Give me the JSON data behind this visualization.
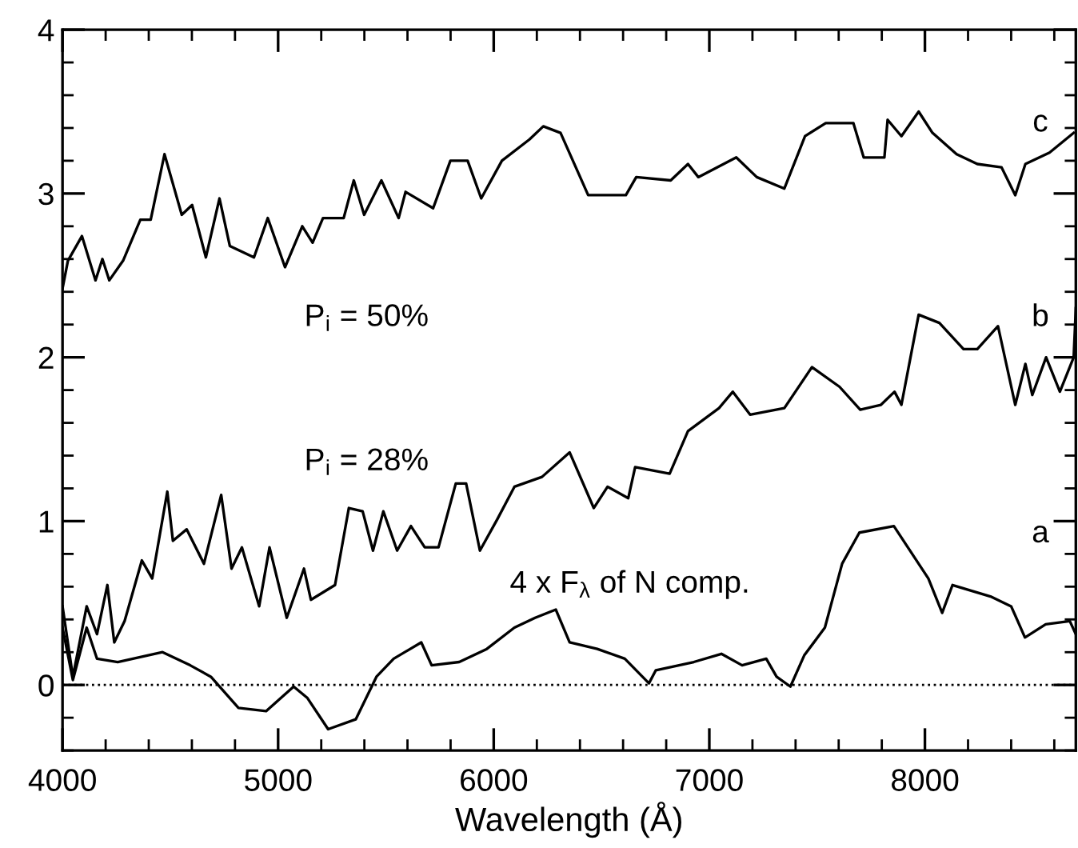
{
  "chart_data": {
    "type": "line",
    "xlabel": "Wavelength (Å)",
    "xlim": [
      4000,
      8700
    ],
    "ylim": [
      -0.4,
      4
    ],
    "xticks": [
      4000,
      5000,
      6000,
      7000,
      8000
    ],
    "yticks": [
      0,
      1,
      2,
      3,
      4
    ],
    "grid": false,
    "legend": false,
    "marker": "none",
    "line_style": "solid",
    "series": [
      {
        "color": "#000000",
        "x": [
          4000,
          4025,
          4090,
          4153,
          4185,
          4217,
          4281,
          4361,
          4409,
          4473,
          4553,
          4601,
          4665,
          4728,
          4776,
          4888,
          4952,
          5032,
          5112,
          5160,
          5208,
          5304,
          5351,
          5399,
          5479,
          5559,
          5591,
          5719,
          5799,
          5879,
          5942,
          6038,
          6166,
          6230,
          6310,
          6438,
          6613,
          6661,
          6821,
          6901,
          6949,
          7125,
          7220,
          7348,
          7444,
          7540,
          7668,
          7716,
          7812,
          7827,
          7891,
          7971,
          8035,
          8147,
          8243,
          8355,
          8419,
          8466,
          8578,
          8690
        ],
        "values": [
          2.42,
          2.59,
          2.74,
          2.47,
          2.6,
          2.47,
          2.59,
          2.84,
          2.84,
          3.24,
          2.87,
          2.93,
          2.61,
          2.97,
          2.68,
          2.61,
          2.85,
          2.55,
          2.8,
          2.7,
          2.85,
          2.85,
          3.08,
          2.87,
          3.08,
          2.85,
          3.01,
          2.91,
          3.2,
          3.2,
          2.97,
          3.2,
          3.33,
          3.41,
          3.37,
          2.99,
          2.99,
          3.1,
          3.08,
          3.18,
          3.1,
          3.22,
          3.1,
          3.03,
          3.35,
          3.43,
          3.43,
          3.22,
          3.22,
          3.45,
          3.35,
          3.5,
          3.37,
          3.24,
          3.18,
          3.16,
          2.99,
          3.18,
          3.25,
          3.37
        ]
      },
      {
        "color": "#000000",
        "x": [
          4000,
          4048,
          4112,
          4160,
          4208,
          4240,
          4288,
          4368,
          4416,
          4486,
          4512,
          4576,
          4656,
          4736,
          4784,
          4832,
          4912,
          4960,
          5040,
          5120,
          5152,
          5264,
          5328,
          5392,
          5440,
          5488,
          5552,
          5616,
          5680,
          5744,
          5824,
          5872,
          5936,
          6016,
          6096,
          6224,
          6352,
          6464,
          6528,
          6624,
          6656,
          6816,
          6901,
          7045,
          7109,
          7189,
          7348,
          7476,
          7604,
          7700,
          7796,
          7859,
          7891,
          7971,
          8067,
          8179,
          8243,
          8339,
          8419,
          8466,
          8498,
          8562,
          8626,
          8690,
          8700
        ],
        "values": [
          0.48,
          0.05,
          0.48,
          0.31,
          0.61,
          0.26,
          0.39,
          0.76,
          0.65,
          1.18,
          0.88,
          0.95,
          0.74,
          1.16,
          0.71,
          0.84,
          0.48,
          0.84,
          0.41,
          0.71,
          0.52,
          0.61,
          1.08,
          1.06,
          0.82,
          1.06,
          0.82,
          0.97,
          0.84,
          0.84,
          1.23,
          1.23,
          0.82,
          1.01,
          1.21,
          1.27,
          1.42,
          1.08,
          1.21,
          1.14,
          1.33,
          1.29,
          1.55,
          1.69,
          1.79,
          1.65,
          1.69,
          1.94,
          1.82,
          1.68,
          1.71,
          1.79,
          1.71,
          2.26,
          2.21,
          2.05,
          2.05,
          2.19,
          1.71,
          1.96,
          1.77,
          2.0,
          1.79,
          2.0,
          2.3
        ]
      },
      {
        "color": "#000000",
        "x": [
          4000,
          4048,
          4112,
          4160,
          4256,
          4464,
          4592,
          4688,
          4816,
          4944,
          5072,
          5136,
          5232,
          5360,
          5456,
          5536,
          5664,
          5712,
          5840,
          5968,
          6096,
          6192,
          6288,
          6352,
          6480,
          6608,
          6720,
          6752,
          6928,
          7056,
          7152,
          7264,
          7312,
          7376,
          7440,
          7536,
          7616,
          7696,
          7856,
          8016,
          8080,
          8128,
          8304,
          8400,
          8464,
          8560,
          8672,
          8700
        ],
        "values": [
          0.35,
          0.03,
          0.35,
          0.16,
          0.14,
          0.2,
          0.12,
          0.05,
          -0.14,
          -0.16,
          -0.01,
          -0.08,
          -0.27,
          -0.21,
          0.05,
          0.16,
          0.26,
          0.12,
          0.14,
          0.22,
          0.35,
          0.41,
          0.46,
          0.26,
          0.22,
          0.16,
          0.01,
          0.09,
          0.14,
          0.19,
          0.12,
          0.16,
          0.05,
          -0.01,
          0.18,
          0.35,
          0.74,
          0.93,
          0.97,
          0.65,
          0.44,
          0.61,
          0.54,
          0.48,
          0.29,
          0.37,
          0.39,
          0.31
        ]
      }
    ],
    "ref_lines": [
      {
        "axis": "y",
        "value": 0,
        "color": "#000000",
        "line_style": "dotted"
      }
    ],
    "annotations": [
      "c",
      "b",
      "a",
      "P$_{i}$ = 50%",
      "P$_{i}$ = 28%",
      "4 x F$_{λ}$ of N comp."
    ]
  }
}
